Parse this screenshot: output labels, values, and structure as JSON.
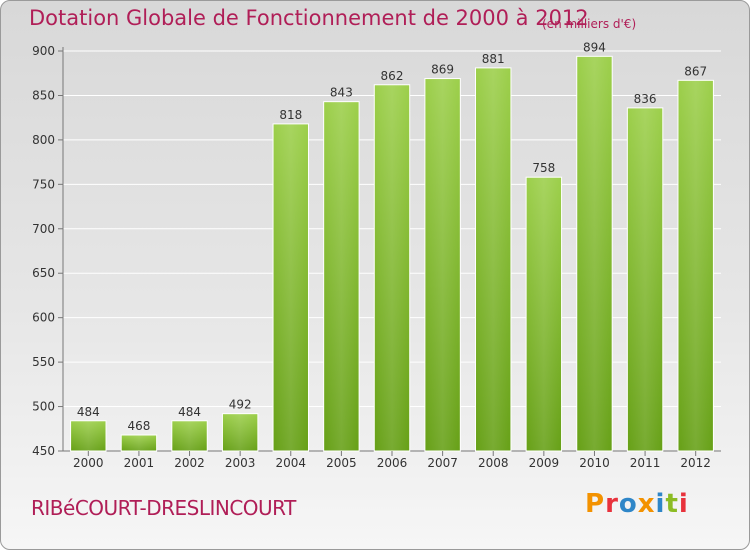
{
  "title": "Dotation Globale de Fonctionnement de 2000 à 2012",
  "unit_note": "(en milliers d'€)",
  "commune": "RIBéCOURT-DRESLINCOURT",
  "logo": {
    "text": "Proxiti",
    "letters": [
      "P",
      "r",
      "o",
      "x",
      "i",
      "t",
      "i"
    ],
    "colors": [
      "#f39200",
      "#e8323c",
      "#2e86c8",
      "#f39200",
      "#2e86c8",
      "#8cbc24",
      "#e8323c"
    ]
  },
  "colors": {
    "accent": "#b01e57",
    "bar_top": "#9ccf4a",
    "bar_bottom": "#66a016",
    "grid": "#ffffff",
    "axis": "#777777"
  },
  "chart_data": {
    "type": "bar",
    "title": "Dotation Globale de Fonctionnement de 2000 à 2012",
    "xlabel": "",
    "ylabel": "(en milliers d'€)",
    "categories": [
      "2000",
      "2001",
      "2002",
      "2003",
      "2004",
      "2005",
      "2006",
      "2007",
      "2008",
      "2009",
      "2010",
      "2011",
      "2012"
    ],
    "values": [
      484,
      468,
      484,
      492,
      818,
      843,
      862,
      869,
      881,
      758,
      894,
      836,
      867
    ],
    "ylim": [
      450,
      900
    ],
    "yticks": [
      450,
      500,
      550,
      600,
      650,
      700,
      750,
      800,
      850,
      900
    ],
    "grid": true
  }
}
